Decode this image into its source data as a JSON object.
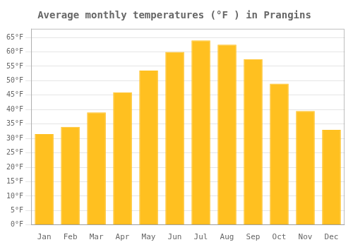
{
  "chart_data": {
    "type": "bar",
    "title": "Average monthly temperatures (°F ) in Prangins",
    "categories": [
      "Jan",
      "Feb",
      "Mar",
      "Apr",
      "May",
      "Jun",
      "Jul",
      "Aug",
      "Sep",
      "Oct",
      "Nov",
      "Dec"
    ],
    "values": [
      31.5,
      34.0,
      39.0,
      46.0,
      53.5,
      60.0,
      64.0,
      62.5,
      57.5,
      49.0,
      39.5,
      33.0
    ],
    "color": "#FFC020",
    "ylim": [
      0,
      68
    ],
    "yticks": [
      {
        "value": 0,
        "label": "0°F"
      },
      {
        "value": 5,
        "label": "5°F"
      },
      {
        "value": 10,
        "label": "10°F"
      },
      {
        "value": 15,
        "label": "15°F"
      },
      {
        "value": 20,
        "label": "20°F"
      },
      {
        "value": 25,
        "label": "25°F"
      },
      {
        "value": 30,
        "label": "30°F"
      },
      {
        "value": 35,
        "label": "35°F"
      },
      {
        "value": 40,
        "label": "40°F"
      },
      {
        "value": 45,
        "label": "45°F"
      },
      {
        "value": 50,
        "label": "50°F"
      },
      {
        "value": 55,
        "label": "55°F"
      },
      {
        "value": 60,
        "label": "60°F"
      },
      {
        "value": 65,
        "label": "65°F"
      }
    ],
    "grid": true
  }
}
